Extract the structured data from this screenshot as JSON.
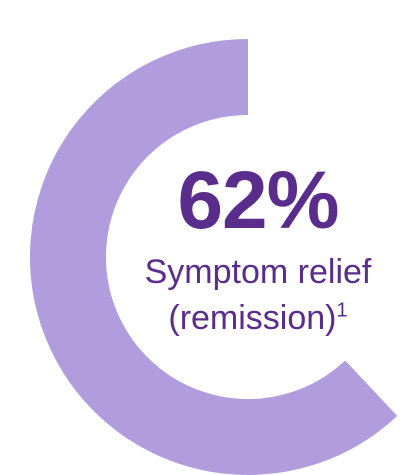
{
  "chart_data": {
    "type": "pie",
    "value_text": "62%",
    "percent": 62,
    "label_line1": "Symptom relief",
    "label_line2": "(remission)",
    "footnote_marker": "1",
    "colors": {
      "ring": "#b19cdd",
      "text": "#5a2d8c"
    }
  }
}
